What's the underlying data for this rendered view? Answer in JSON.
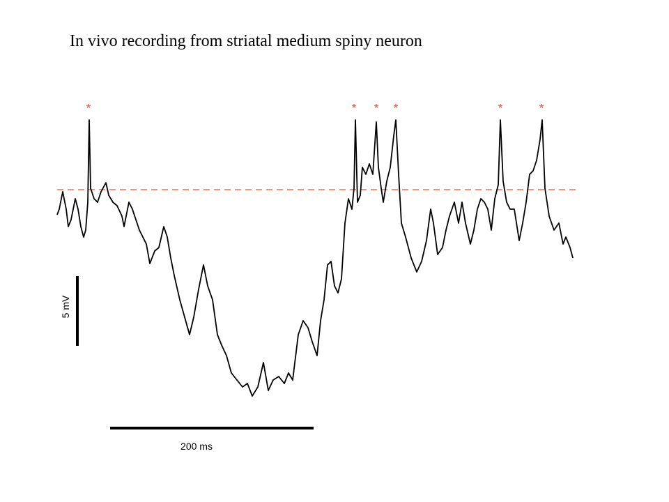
{
  "title": "In vivo recording from striatal medium spiny neuron",
  "spike_markers": [
    "*",
    "*",
    "*",
    "*",
    "*",
    "*"
  ],
  "scale_bars": {
    "voltage": "5 mV",
    "time": "200 ms"
  }
}
